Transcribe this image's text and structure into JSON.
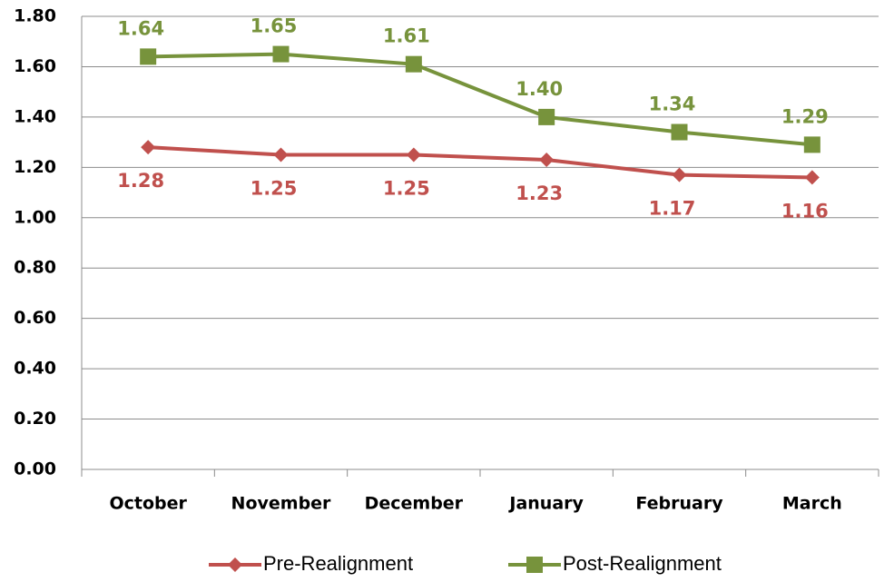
{
  "chart_data": {
    "type": "line",
    "categories": [
      "October",
      "November",
      "December",
      "January",
      "February",
      "March"
    ],
    "series": [
      {
        "name": "Pre-Realignment",
        "color": "#c0504d",
        "marker": "diamond",
        "values": [
          1.28,
          1.25,
          1.25,
          1.23,
          1.17,
          1.16
        ],
        "value_labels": [
          "1.28",
          "1.25",
          "1.25",
          "1.23",
          "1.17",
          "1.16"
        ]
      },
      {
        "name": "Post-Realignment",
        "color": "#77933c",
        "marker": "square",
        "values": [
          1.64,
          1.65,
          1.61,
          1.4,
          1.34,
          1.29
        ],
        "value_labels": [
          "1.64",
          "1.65",
          "1.61",
          "1.40",
          "1.34",
          "1.29"
        ]
      }
    ],
    "ylim": [
      0,
      1.8
    ],
    "yticks": [
      {
        "value": 0,
        "label": "0.00"
      },
      {
        "value": 0.2,
        "label": "0.20"
      },
      {
        "value": 0.4,
        "label": "0.40"
      },
      {
        "value": 0.6,
        "label": "0.60"
      },
      {
        "value": 0.8,
        "label": "0.80"
      },
      {
        "value": 1,
        "label": "1.00"
      },
      {
        "value": 1.2,
        "label": "1.20"
      },
      {
        "value": 1.4,
        "label": "1.40"
      },
      {
        "value": 1.6,
        "label": "1.60"
      },
      {
        "value": 1.8,
        "label": "1.80"
      }
    ],
    "grid": true,
    "legend": "bottom"
  }
}
